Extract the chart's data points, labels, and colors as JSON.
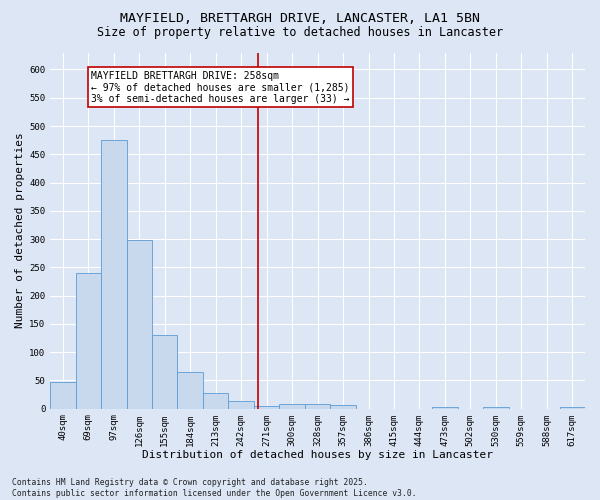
{
  "title": "MAYFIELD, BRETTARGH DRIVE, LANCASTER, LA1 5BN",
  "subtitle": "Size of property relative to detached houses in Lancaster",
  "xlabel": "Distribution of detached houses by size in Lancaster",
  "ylabel": "Number of detached properties",
  "categories": [
    "40sqm",
    "69sqm",
    "97sqm",
    "126sqm",
    "155sqm",
    "184sqm",
    "213sqm",
    "242sqm",
    "271sqm",
    "300sqm",
    "328sqm",
    "357sqm",
    "386sqm",
    "415sqm",
    "444sqm",
    "473sqm",
    "502sqm",
    "530sqm",
    "559sqm",
    "588sqm",
    "617sqm"
  ],
  "values": [
    48,
    240,
    475,
    298,
    130,
    65,
    28,
    14,
    5,
    9,
    9,
    6,
    0,
    0,
    0,
    3,
    0,
    3,
    0,
    0,
    3
  ],
  "bar_color": "#c9d9ed",
  "bar_edge_color": "#5b9bd5",
  "vline_x": 7.65,
  "vline_color": "#c00000",
  "annotation_text": "MAYFIELD BRETTARGH DRIVE: 258sqm\n← 97% of detached houses are smaller (1,285)\n3% of semi-detached houses are larger (33) →",
  "annotation_box_color": "#ffffff",
  "annotation_box_edge_color": "#c00000",
  "ylim": [
    0,
    630
  ],
  "yticks": [
    0,
    50,
    100,
    150,
    200,
    250,
    300,
    350,
    400,
    450,
    500,
    550,
    600
  ],
  "fig_background_color": "#dce6f5",
  "ax_background_color": "#dce6f5",
  "grid_color": "#ffffff",
  "footer_line1": "Contains HM Land Registry data © Crown copyright and database right 2025.",
  "footer_line2": "Contains public sector information licensed under the Open Government Licence v3.0.",
  "title_fontsize": 9.5,
  "subtitle_fontsize": 8.5,
  "axis_label_fontsize": 8,
  "tick_fontsize": 6.5,
  "annotation_fontsize": 7,
  "footer_fontsize": 5.8
}
